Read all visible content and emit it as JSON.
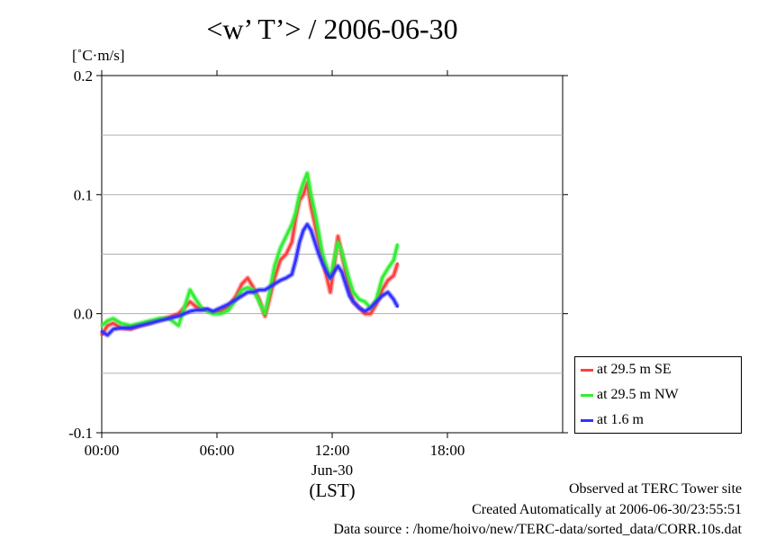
{
  "chart_data": {
    "type": "line",
    "title": "<w’ T’> / 2006-06-30",
    "ylabel_unit": "[˚C·m/s]",
    "xlabel_date": "Jun-30",
    "xlabel_tz": "(LST)",
    "xlim": [
      0,
      24
    ],
    "ylim": [
      -0.1,
      0.2
    ],
    "x_ticks": [
      {
        "value": 0,
        "label": "00:00"
      },
      {
        "value": 6,
        "label": "06:00"
      },
      {
        "value": 12,
        "label": "12:00"
      },
      {
        "value": 18,
        "label": "18:00"
      }
    ],
    "y_ticks": [
      {
        "value": -0.1,
        "label": "-0.1"
      },
      {
        "value": 0.0,
        "label": "0.0"
      },
      {
        "value": 0.1,
        "label": "0.1"
      },
      {
        "value": 0.2,
        "label": "0.2"
      }
    ],
    "gridlines_y": [
      -0.05,
      0.0,
      0.05,
      0.1,
      0.15
    ],
    "legend_position": "right-bottom",
    "series": [
      {
        "name": "at 29.5 m SE",
        "color": "#ff4040",
        "x": [
          0.0,
          0.3,
          0.6,
          1.0,
          1.5,
          2.0,
          2.5,
          3.0,
          3.5,
          4.0,
          4.3,
          4.6,
          4.9,
          5.2,
          5.5,
          5.8,
          6.2,
          6.6,
          7.0,
          7.3,
          7.6,
          7.9,
          8.2,
          8.5,
          8.7,
          9.0,
          9.3,
          9.6,
          9.9,
          10.1,
          10.3,
          10.5,
          10.7,
          10.9,
          11.1,
          11.3,
          11.5,
          11.7,
          11.9,
          12.1,
          12.3,
          12.5,
          12.7,
          12.9,
          13.1,
          13.4,
          13.7,
          14.0,
          14.3,
          14.6,
          14.9,
          15.2,
          15.4
        ],
        "y": [
          -0.018,
          -0.01,
          -0.008,
          -0.012,
          -0.013,
          -0.01,
          -0.008,
          -0.005,
          -0.003,
          0.0,
          0.005,
          0.01,
          0.006,
          0.004,
          0.003,
          0.001,
          0.002,
          0.006,
          0.015,
          0.025,
          0.03,
          0.022,
          0.012,
          -0.002,
          0.01,
          0.03,
          0.045,
          0.05,
          0.06,
          0.08,
          0.095,
          0.1,
          0.11,
          0.09,
          0.075,
          0.06,
          0.045,
          0.032,
          0.018,
          0.04,
          0.065,
          0.05,
          0.035,
          0.02,
          0.01,
          0.005,
          0.0,
          0.0,
          0.008,
          0.02,
          0.028,
          0.032,
          0.042
        ]
      },
      {
        "name": "at 29.5 m NW",
        "color": "#33ee33",
        "x": [
          0.0,
          0.3,
          0.6,
          1.0,
          1.5,
          2.0,
          2.5,
          3.0,
          3.5,
          4.0,
          4.3,
          4.6,
          4.9,
          5.2,
          5.5,
          5.8,
          6.2,
          6.6,
          7.0,
          7.3,
          7.6,
          7.9,
          8.2,
          8.5,
          8.7,
          9.0,
          9.3,
          9.6,
          9.9,
          10.1,
          10.3,
          10.5,
          10.7,
          10.9,
          11.1,
          11.3,
          11.5,
          11.7,
          11.9,
          12.1,
          12.3,
          12.5,
          12.7,
          12.9,
          13.1,
          13.4,
          13.7,
          14.0,
          14.3,
          14.6,
          14.9,
          15.2,
          15.4
        ],
        "y": [
          -0.01,
          -0.006,
          -0.004,
          -0.008,
          -0.01,
          -0.008,
          -0.006,
          -0.004,
          -0.004,
          -0.01,
          0.005,
          0.02,
          0.012,
          0.005,
          0.002,
          0.0,
          0.0,
          0.003,
          0.012,
          0.02,
          0.022,
          0.02,
          0.01,
          0.0,
          0.015,
          0.04,
          0.055,
          0.065,
          0.075,
          0.085,
          0.1,
          0.11,
          0.118,
          0.1,
          0.085,
          0.068,
          0.05,
          0.04,
          0.03,
          0.045,
          0.06,
          0.052,
          0.04,
          0.028,
          0.018,
          0.012,
          0.01,
          0.005,
          0.012,
          0.03,
          0.038,
          0.045,
          0.058
        ]
      },
      {
        "name": "at 1.6 m",
        "color": "#3333ff",
        "x": [
          0.0,
          0.3,
          0.6,
          1.0,
          1.5,
          2.0,
          2.5,
          3.0,
          3.5,
          4.0,
          4.3,
          4.6,
          4.9,
          5.2,
          5.5,
          5.8,
          6.2,
          6.6,
          7.0,
          7.3,
          7.6,
          7.9,
          8.2,
          8.5,
          8.7,
          9.0,
          9.3,
          9.6,
          9.9,
          10.1,
          10.3,
          10.5,
          10.7,
          10.9,
          11.1,
          11.3,
          11.5,
          11.7,
          11.9,
          12.1,
          12.3,
          12.5,
          12.7,
          12.9,
          13.1,
          13.4,
          13.7,
          14.0,
          14.3,
          14.6,
          14.9,
          15.2,
          15.4
        ],
        "y": [
          -0.015,
          -0.018,
          -0.013,
          -0.012,
          -0.012,
          -0.01,
          -0.008,
          -0.006,
          -0.004,
          -0.002,
          0.0,
          0.002,
          0.003,
          0.003,
          0.004,
          0.002,
          0.005,
          0.008,
          0.012,
          0.015,
          0.018,
          0.018,
          0.02,
          0.02,
          0.022,
          0.025,
          0.028,
          0.03,
          0.033,
          0.045,
          0.06,
          0.07,
          0.075,
          0.07,
          0.06,
          0.05,
          0.042,
          0.035,
          0.03,
          0.035,
          0.04,
          0.035,
          0.025,
          0.015,
          0.01,
          0.005,
          0.002,
          0.005,
          0.01,
          0.015,
          0.018,
          0.012,
          0.006
        ]
      }
    ]
  },
  "footer": {
    "line1": "Observed at TERC Tower site",
    "line2": "Created Automatically at 2006-06-30/23:55:51",
    "line3": "Data source : /home/hoivo/new/TERC-data/sorted_data/CORR.10s.dat"
  }
}
